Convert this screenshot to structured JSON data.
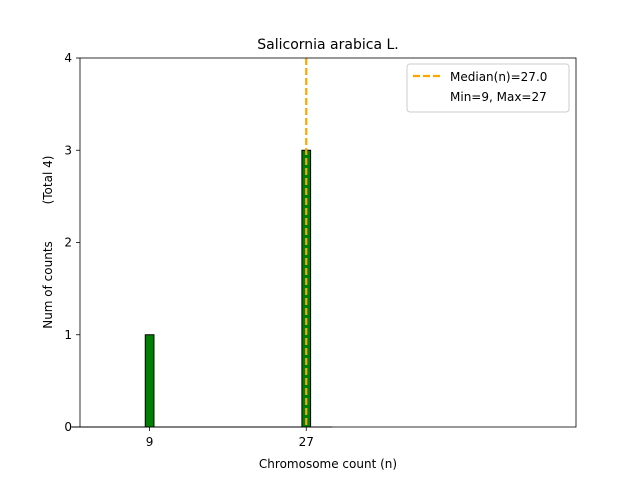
{
  "chart_data": {
    "type": "bar",
    "title": "Salicornia arabica L.",
    "xlabel": "Chromosome count (n)",
    "ylabel": "Num of counts",
    "ylabel_secondary": "(Total 4)",
    "x_ticks": [
      9,
      27
    ],
    "y_ticks": [
      0,
      1,
      2,
      3,
      4
    ],
    "ylim": [
      0,
      4
    ],
    "xlim": [
      1,
      58
    ],
    "bars": [
      {
        "x": 9,
        "value": 1
      },
      {
        "x": 27,
        "value": 3
      }
    ],
    "bar_width": 1,
    "bar_color": "#008000",
    "baseline_extent": [
      0,
      30
    ],
    "median": 27.0,
    "median_color": "#FFA500",
    "legend": {
      "placement": "top-right",
      "entries": [
        "Median(n)=27.0",
        "Min=9, Max=27"
      ]
    }
  }
}
